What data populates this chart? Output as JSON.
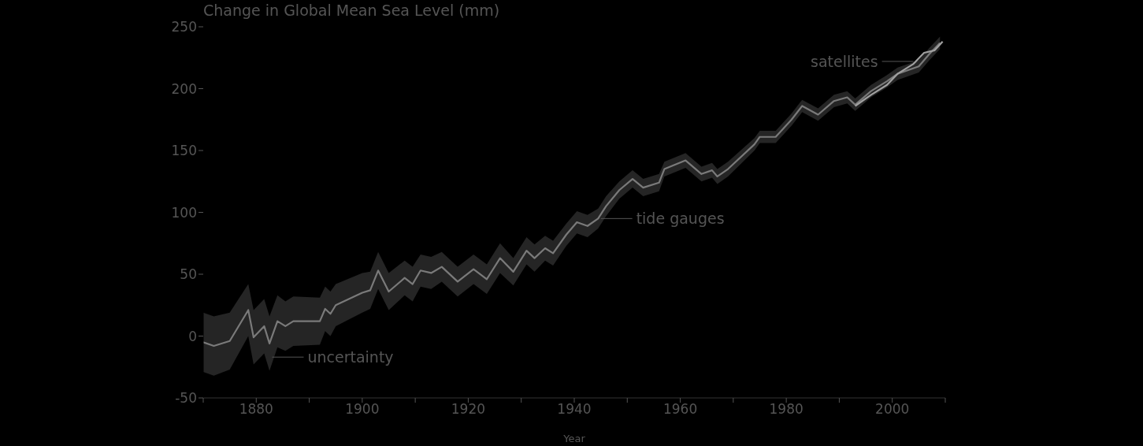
{
  "chart_data": {
    "type": "line",
    "title": "Change in Global Mean Sea Level (mm)",
    "xlabel": "Year",
    "xlim": [
      1870,
      2010
    ],
    "xticks": [
      {
        "value": 1870,
        "label": null
      },
      1880,
      {
        "value": 1890,
        "label": null
      },
      1900,
      {
        "value": 1910,
        "label": null
      },
      1920,
      {
        "value": 1930,
        "label": null
      },
      1940,
      {
        "value": 1950,
        "label": null
      },
      1960,
      {
        "value": 1970,
        "label": null
      },
      1980,
      {
        "value": 1990,
        "label": null
      },
      2000,
      {
        "value": 2010,
        "label": null
      }
    ],
    "ylim": [
      -50,
      250
    ],
    "yticks": [
      -50,
      0,
      50,
      100,
      150,
      200,
      250
    ],
    "grid": false,
    "legend": false,
    "marker": "none",
    "line_style": "solid",
    "series": [
      {
        "color": "#7a7a7a",
        "x": [
          1870,
          1872,
          1875,
          1878.5,
          1879.5,
          1881.5,
          1882.5,
          1884,
          1885.5,
          1887,
          1892,
          1893,
          1894,
          1895,
          1900,
          1901.5,
          1903,
          1905,
          1908,
          1909.5,
          1911,
          1913,
          1915,
          1918,
          1921,
          1923.5,
          1926,
          1928.5,
          1931,
          1932.5,
          1934.5,
          1936,
          1938.5,
          1940.5,
          1942.5,
          1944.5,
          1946,
          1948.5,
          1951,
          1953,
          1956,
          1957,
          1961,
          1964,
          1966,
          1967,
          1969,
          1974,
          1975,
          1978,
          1981,
          1983,
          1986,
          1989,
          1991.5,
          1993,
          1996,
          1999,
          2001,
          2005,
          2007,
          2009
        ],
        "values": [
          -5,
          -8,
          -4,
          21,
          -1,
          8,
          -6,
          12,
          8,
          12,
          12,
          22,
          18,
          25,
          35,
          37,
          53,
          36,
          47,
          42,
          53,
          51,
          56,
          44,
          54,
          46,
          63,
          52,
          69,
          63,
          71,
          67,
          82,
          92,
          89,
          95,
          105,
          118,
          127,
          120,
          124,
          135,
          142,
          131,
          134,
          129,
          135,
          155,
          161,
          161,
          175,
          186,
          179,
          190,
          193,
          187,
          198,
          206,
          212,
          218,
          228,
          237
        ],
        "lower": [
          -29,
          -32,
          -27,
          0,
          -23,
          -14,
          -28,
          -9,
          -12,
          -8,
          -7,
          4,
          0,
          8,
          19,
          22,
          38,
          21,
          33,
          28,
          40,
          38,
          44,
          32,
          42,
          34,
          51,
          41,
          58,
          52,
          61,
          57,
          73,
          83,
          80,
          87,
          97,
          111,
          120,
          113,
          117,
          129,
          136,
          125,
          128,
          123,
          129,
          150,
          156,
          156,
          170,
          181,
          174,
          185,
          188,
          182,
          193,
          201,
          207,
          213,
          223,
          232
        ],
        "upper": [
          19,
          16,
          19,
          42,
          21,
          30,
          16,
          33,
          28,
          32,
          31,
          40,
          36,
          42,
          51,
          52,
          68,
          51,
          61,
          56,
          66,
          64,
          68,
          56,
          66,
          58,
          75,
          63,
          80,
          74,
          81,
          77,
          91,
          101,
          98,
          103,
          113,
          125,
          134,
          127,
          131,
          141,
          148,
          137,
          140,
          135,
          141,
          160,
          166,
          166,
          180,
          191,
          184,
          195,
          198,
          192,
          203,
          211,
          217,
          223,
          233,
          242
        ]
      },
      {
        "color": "#a0a0a0",
        "x": [
          1993,
          1996,
          1999,
          2001,
          2004,
          2006,
          2008,
          2009.5
        ],
        "values": [
          186,
          195,
          203,
          212,
          220,
          229,
          231,
          238
        ]
      }
    ],
    "annotations": [
      {
        "text": "uncertainty",
        "x": 1883,
        "y": -17
      },
      {
        "text": "tide gauges",
        "x": 1945,
        "y": 95
      },
      {
        "text": "satellites",
        "x": 2004,
        "y": 222
      }
    ]
  }
}
